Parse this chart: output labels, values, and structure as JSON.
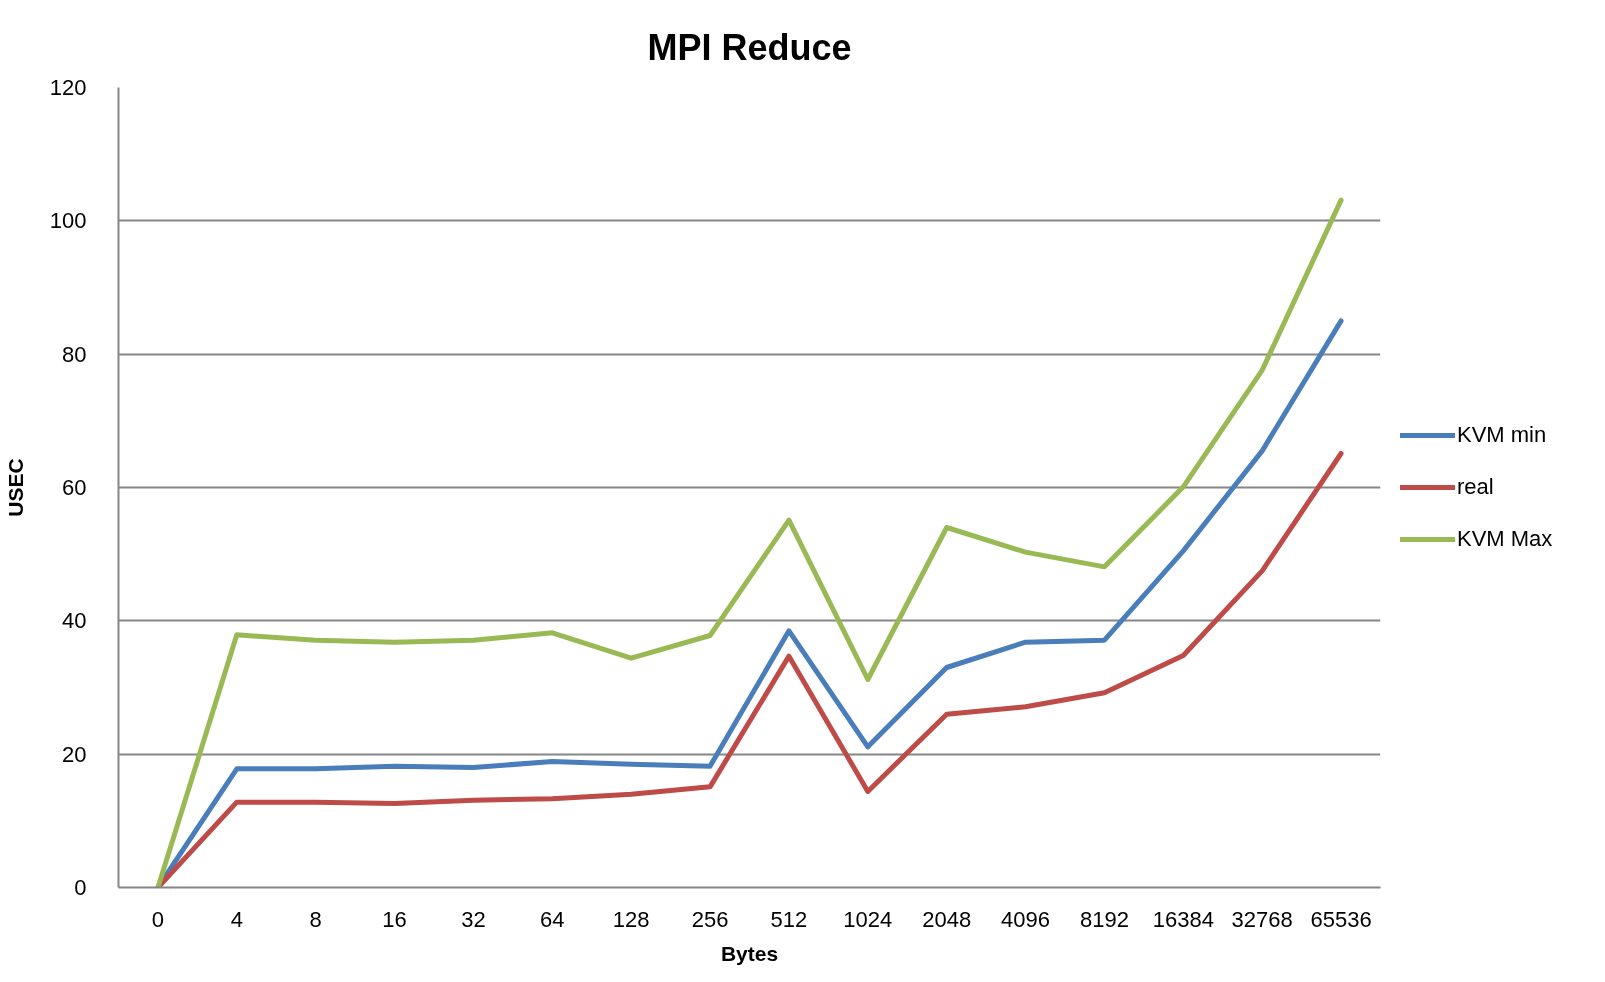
{
  "chart_data": {
    "type": "line",
    "title": "MPI Reduce",
    "xlabel": "Bytes",
    "ylabel": "USEC",
    "categories": [
      "0",
      "4",
      "8",
      "16",
      "32",
      "64",
      "128",
      "256",
      "512",
      "1024",
      "2048",
      "4096",
      "8192",
      "16384",
      "32768",
      "65536"
    ],
    "series": [
      {
        "name": "KVM min",
        "color": "#4a7ebb",
        "values": [
          0,
          17.8,
          17.8,
          18.2,
          18.0,
          18.9,
          18.5,
          18.2,
          38.5,
          21.1,
          33.0,
          36.8,
          37.1,
          50.5,
          65.5,
          85.0
        ]
      },
      {
        "name": "real",
        "color": "#be4b48",
        "values": [
          0,
          12.8,
          12.8,
          12.6,
          13.1,
          13.3,
          14.0,
          15.1,
          34.7,
          14.4,
          26.0,
          27.1,
          29.2,
          34.8,
          47.5,
          65.1
        ]
      },
      {
        "name": "KVM Max",
        "color": "#98b954",
        "values": [
          0,
          37.9,
          37.1,
          36.8,
          37.1,
          38.2,
          34.4,
          37.8,
          55.1,
          31.2,
          54.0,
          50.3,
          48.1,
          60.1,
          77.6,
          103.1
        ]
      }
    ],
    "ylim": [
      0,
      120
    ],
    "yticks": [
      0,
      20,
      40,
      60,
      80,
      100,
      120
    ],
    "grid": "y",
    "legend": "right"
  }
}
